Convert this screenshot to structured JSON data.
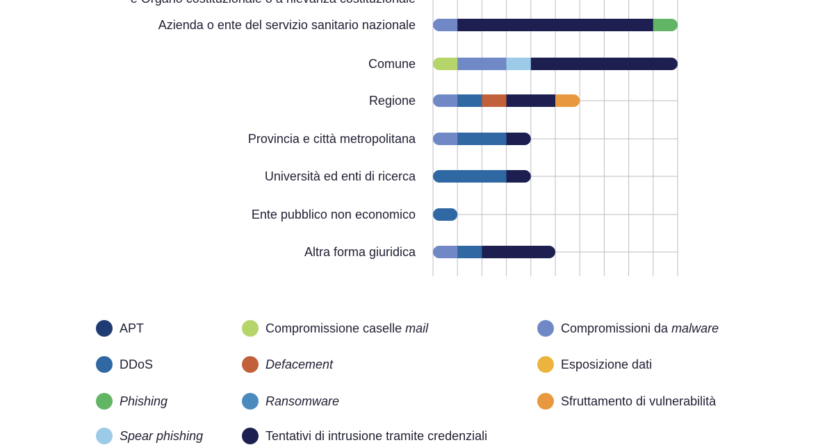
{
  "chart_data": {
    "type": "bar",
    "orientation": "horizontal",
    "stacked": true,
    "categories": [
      "e Organo costituzionale o a rilevanza costituzionale",
      "Azienda o ente del servizio sanitario nazionale",
      "Comune",
      "Regione",
      "Provincia e città metropolitana",
      "Università ed enti di ricerca",
      "Ente pubblico non economico",
      "Altra forma giuridica"
    ],
    "series": [
      {
        "name": "APT",
        "color": "#1f3b73",
        "values": [
          0,
          0,
          0,
          0,
          0,
          0,
          0,
          0
        ]
      },
      {
        "name": "Compromissione caselle mail",
        "color": "#b5d56a",
        "values": [
          0,
          0,
          1,
          0,
          0,
          0,
          0,
          0
        ]
      },
      {
        "name": "Compromissioni da malware",
        "color": "#7089c6",
        "values": [
          0,
          1,
          2,
          1,
          1,
          0,
          0,
          1
        ]
      },
      {
        "name": "DDoS",
        "color": "#2f68a2",
        "values": [
          0,
          0,
          0,
          1,
          2,
          3,
          1,
          1
        ]
      },
      {
        "name": "Defacement",
        "color": "#c1603a",
        "values": [
          0,
          0,
          0,
          1,
          0,
          0,
          0,
          0
        ]
      },
      {
        "name": "Esposizione dati",
        "color": "#ecb43f",
        "values": [
          0,
          0,
          0,
          0,
          0,
          0,
          0,
          0
        ]
      },
      {
        "name": "Phishing",
        "color": "#62b565",
        "values": [
          0,
          1,
          0,
          0,
          0,
          0,
          0,
          0
        ]
      },
      {
        "name": "Ransomware",
        "color": "#4a8bbf",
        "values": [
          0,
          0,
          0,
          0,
          0,
          0,
          0,
          0
        ]
      },
      {
        "name": "Sfruttamento di vulnerabilità",
        "color": "#e8993f",
        "values": [
          0,
          0,
          0,
          1,
          0,
          0,
          0,
          0
        ]
      },
      {
        "name": "Spear phishing",
        "color": "#9ccbe8",
        "values": [
          0,
          0,
          1,
          0,
          0,
          0,
          0,
          0
        ]
      },
      {
        "name": "Tentativi di intrusione tramite credenziali",
        "color": "#1c1f4f",
        "values": [
          0,
          8,
          6,
          2,
          1,
          1,
          0,
          3
        ]
      }
    ],
    "order": [
      "Compromissione caselle mail",
      "Compromissioni da malware",
      "DDoS",
      "Spear phishing",
      "Defacement",
      "Tentativi di intrusione tramite credenziali",
      "Sfruttamento di vulnerabilità",
      "Phishing"
    ],
    "xlim": [
      0,
      10
    ],
    "grid": true,
    "legend_position": "bottom"
  },
  "legend": [
    {
      "pre": "",
      "em": "",
      "post": "APT",
      "color": "#1f3b73"
    },
    {
      "pre": "Compromissione caselle ",
      "em": "mail",
      "post": "",
      "color": "#b5d56a"
    },
    {
      "pre": "Compromissioni da ",
      "em": "malware",
      "post": "",
      "color": "#7089c6"
    },
    {
      "pre": "",
      "em": "",
      "post": "DDoS",
      "color": "#2f68a2"
    },
    {
      "pre": "",
      "em": "Defacement",
      "post": "",
      "color": "#c1603a"
    },
    {
      "pre": "",
      "em": "",
      "post": "Esposizione dati",
      "color": "#ecb43f"
    },
    {
      "pre": "",
      "em": "Phishing",
      "post": "",
      "color": "#62b565"
    },
    {
      "pre": "",
      "em": "Ransomware",
      "post": "",
      "color": "#4a8bbf"
    },
    {
      "pre": "",
      "em": "",
      "post": "Sfruttamento di vulnerabilità",
      "color": "#e8993f"
    },
    {
      "pre": "",
      "em": "Spear phishing",
      "post": "",
      "color": "#9ccbe8"
    },
    {
      "pre": "",
      "em": "",
      "post": "Tentativi di intrusione tramite credenziali",
      "color": "#1c1f4f"
    }
  ]
}
